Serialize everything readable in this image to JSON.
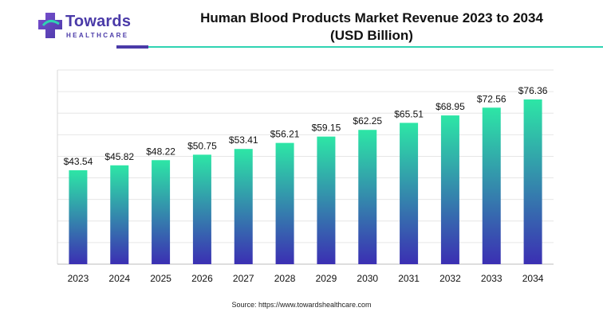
{
  "brand": {
    "name": "Towards",
    "tagline": "HEALTHCARE",
    "colors": {
      "primary": "#4a3aa8",
      "accent": "#2fd3b2"
    }
  },
  "chart_data": {
    "type": "bar",
    "title_line1": "Human Blood Products Market Revenue 2023 to 2034",
    "title_line2": "(USD Billion)",
    "categories": [
      "2023",
      "2024",
      "2025",
      "2026",
      "2027",
      "2028",
      "2029",
      "2030",
      "2031",
      "2032",
      "2033",
      "2034"
    ],
    "values": [
      43.54,
      45.82,
      48.22,
      50.75,
      53.41,
      56.21,
      59.15,
      62.25,
      65.51,
      68.95,
      72.56,
      76.36
    ],
    "value_labels": [
      "$43.54",
      "$45.82",
      "$48.22",
      "$50.75",
      "$53.41",
      "$56.21",
      "$59.15",
      "$62.25",
      "$65.51",
      "$68.95",
      "$72.56",
      "$76.36"
    ],
    "ylim": [
      0,
      90
    ],
    "grid": true,
    "bar_gradient": {
      "top": "#2de6a6",
      "bottom": "#3b2fb3"
    }
  },
  "source": "Source: https://www.towardshealthcare.com"
}
